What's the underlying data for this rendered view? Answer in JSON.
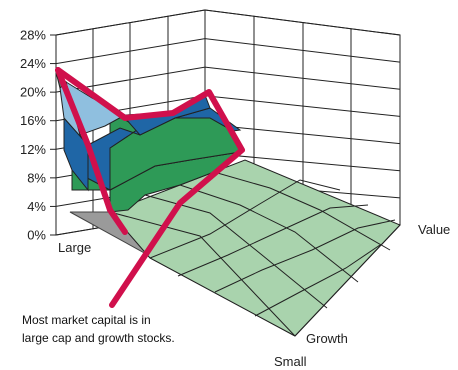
{
  "chart_data": {
    "type": "surface3d",
    "title": "",
    "z_axis": {
      "ticks": [
        "0%",
        "4%",
        "8%",
        "12%",
        "16%",
        "20%",
        "24%",
        "28%"
      ],
      "range": [
        0,
        28
      ],
      "unit": "%"
    },
    "size_axis": {
      "labels": [
        "Large",
        "Small"
      ]
    },
    "style_axis": {
      "labels": [
        "Growth",
        "Value"
      ]
    },
    "grid": true,
    "highlight_values_percent": [
      24,
      16,
      16,
      20,
      12
    ],
    "annotation": [
      "Most market capital is in",
      "large cap and growth stocks."
    ],
    "colors": {
      "band_0_4": "#a9d3ad",
      "band_4_8": "#2e9a57",
      "band_8_12": "#1f66a6",
      "band_12_16": "#8fbfdf",
      "band_16_20": "#5a9bcf",
      "side_wall": "#9a9a9a",
      "highlight": "#d0104c",
      "grid": "#222222"
    }
  }
}
